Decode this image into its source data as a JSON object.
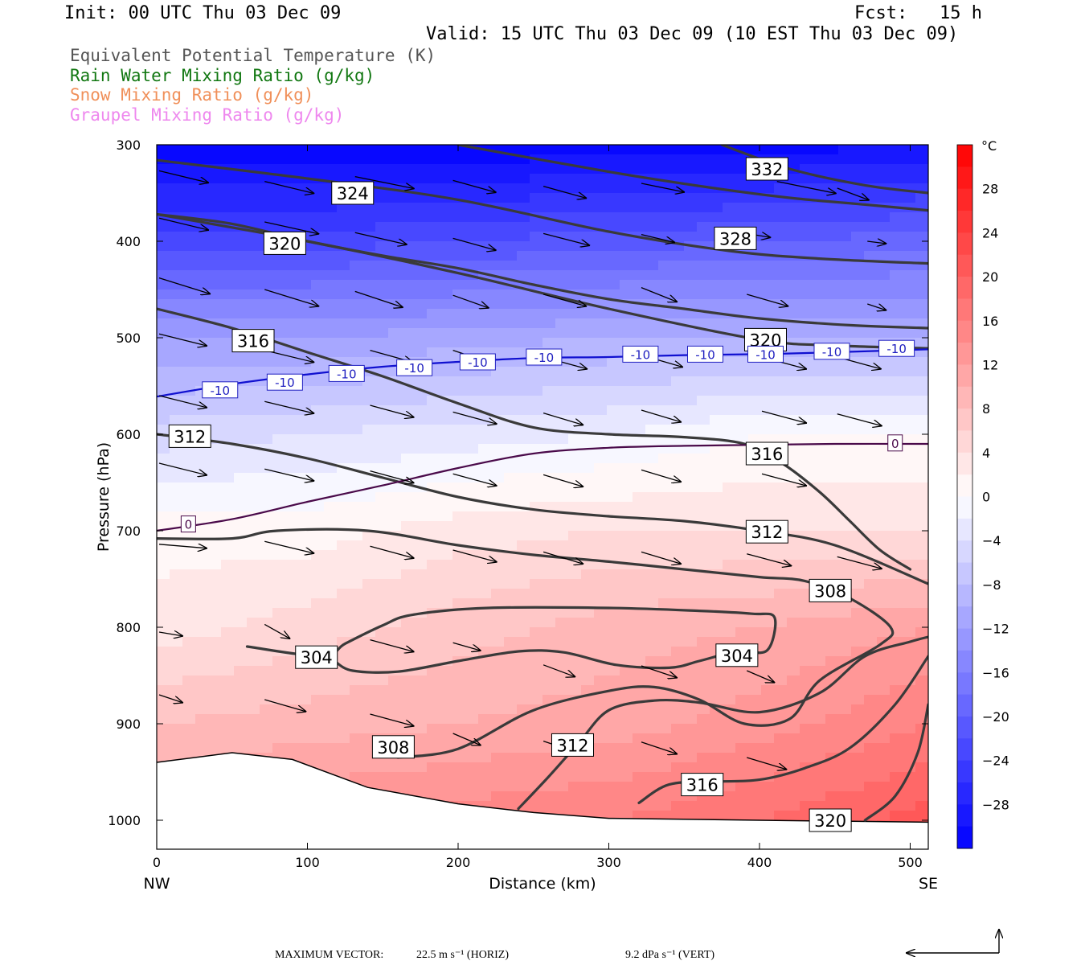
{
  "header": {
    "init": "Init: 00 UTC Thu 03 Dec 09",
    "fcst": "Fcst:   15 h",
    "valid": "Valid: 15 UTC Thu 03 Dec 09 (10 EST Thu 03 Dec 09)"
  },
  "legend": [
    {
      "label": "Equivalent Potential Temperature (K)",
      "color": "#555555"
    },
    {
      "label": "Rain Water Mixing Ratio (g/kg)",
      "color": "#117711"
    },
    {
      "label": "Snow Mixing Ratio (g/kg)",
      "color": "#f0905a"
    },
    {
      "label": "Graupel Mixing Ratio (g/kg)",
      "color": "#ee88ee"
    }
  ],
  "chart_data": {
    "type": "cross-section",
    "xlabel": "Distance (km)",
    "ylabel": "Pressure (hPa)",
    "xlim": [
      0,
      512
    ],
    "ylim": [
      1030,
      300
    ],
    "x_ticks": [
      0,
      100,
      200,
      300,
      400,
      500
    ],
    "y_ticks": [
      300,
      400,
      500,
      600,
      700,
      800,
      900,
      1000
    ],
    "x_end_labels": {
      "left": "NW",
      "right": "SE"
    },
    "colorbar": {
      "unit": "°C",
      "range": [
        -32,
        32
      ],
      "ticks": [
        28,
        24,
        20,
        16,
        12,
        8,
        4,
        0,
        -4,
        -8,
        -12,
        -16,
        -20,
        -24,
        -28
      ]
    },
    "temperature_field": {
      "x": [
        0,
        100,
        200,
        300,
        400,
        512
      ],
      "p": [
        300,
        400,
        500,
        600,
        700,
        800,
        900,
        1000
      ],
      "t": [
        [
          -32,
          -32,
          -32,
          -31,
          -31,
          -30
        ],
        [
          -23,
          -23,
          -22,
          -21,
          -20,
          -19
        ],
        [
          -12,
          -12,
          -11,
          -10,
          -10,
          -10
        ],
        [
          -5,
          -4,
          -3,
          -2,
          0,
          0
        ],
        [
          1,
          1,
          3,
          4,
          4,
          4
        ],
        [
          3,
          5,
          7,
          9,
          10,
          12
        ],
        [
          8,
          9,
          10,
          11,
          13,
          16
        ],
        [
          12,
          14,
          15,
          16,
          18,
          21
        ]
      ]
    },
    "terrain": [
      [
        0,
        940
      ],
      [
        50,
        930
      ],
      [
        90,
        937
      ],
      [
        140,
        966
      ],
      [
        200,
        983
      ],
      [
        250,
        992
      ],
      [
        300,
        998
      ],
      [
        400,
        1000
      ],
      [
        512,
        1002
      ]
    ],
    "theta_e_contours": [
      {
        "value": "332",
        "points": [
          [
            200,
            300
          ],
          [
            300,
            328
          ],
          [
            370,
            345
          ],
          [
            420,
            355
          ],
          [
            470,
            362
          ],
          [
            512,
            368
          ]
        ]
      },
      {
        "value": "332",
        "points": [
          [
            375,
            300
          ],
          [
            420,
            325
          ],
          [
            470,
            342
          ],
          [
            512,
            350
          ]
        ]
      },
      {
        "value": "328",
        "points": [
          [
            0,
            316
          ],
          [
            100,
            335
          ],
          [
            200,
            357
          ],
          [
            300,
            390
          ],
          [
            380,
            410
          ],
          [
            440,
            418
          ],
          [
            512,
            423
          ]
        ]
      },
      {
        "value": "320",
        "points": [
          [
            0,
            372
          ],
          [
            100,
            400
          ],
          [
            200,
            433
          ],
          [
            300,
            470
          ],
          [
            400,
            502
          ],
          [
            450,
            508
          ],
          [
            512,
            511
          ]
        ]
      },
      {
        "value": "324",
        "points": [
          [
            0,
            372
          ],
          [
            50,
            382
          ],
          [
            100,
            400
          ],
          [
            150,
            415
          ],
          [
            200,
            428
          ],
          [
            250,
            445
          ],
          [
            300,
            460
          ],
          [
            350,
            470
          ],
          [
            400,
            480
          ],
          [
            460,
            487
          ],
          [
            512,
            490
          ]
        ]
      },
      {
        "value": "316",
        "points": [
          [
            0,
            470
          ],
          [
            50,
            490
          ],
          [
            100,
            515
          ],
          [
            150,
            540
          ],
          [
            200,
            568
          ],
          [
            250,
            593
          ],
          [
            300,
            600
          ],
          [
            350,
            603
          ],
          [
            390,
            610
          ],
          [
            415,
            630
          ],
          [
            440,
            660
          ],
          [
            460,
            690
          ],
          [
            480,
            720
          ],
          [
            500,
            740
          ]
        ]
      },
      {
        "value": "312",
        "points": [
          [
            0,
            600
          ],
          [
            50,
            610
          ],
          [
            100,
            625
          ],
          [
            150,
            645
          ],
          [
            200,
            665
          ],
          [
            250,
            678
          ],
          [
            300,
            685
          ],
          [
            350,
            690
          ],
          [
            400,
            700
          ],
          [
            450,
            715
          ],
          [
            512,
            755
          ]
        ]
      },
      {
        "value": "308",
        "points": [
          [
            0,
            708
          ],
          [
            50,
            708
          ],
          [
            80,
            700
          ],
          [
            140,
            700
          ],
          [
            200,
            715
          ],
          [
            250,
            725
          ],
          [
            300,
            732
          ],
          [
            350,
            740
          ],
          [
            400,
            748
          ],
          [
            430,
            752
          ],
          [
            460,
            770
          ],
          [
            487,
            800
          ],
          [
            480,
            818
          ],
          [
            440,
            855
          ],
          [
            420,
            895
          ],
          [
            390,
            900
          ],
          [
            360,
            875
          ],
          [
            330,
            862
          ],
          [
            300,
            866
          ],
          [
            250,
            886
          ],
          [
            200,
            926
          ],
          [
            160,
            935
          ]
        ]
      },
      {
        "value": "304",
        "points": [
          [
            60,
            820
          ],
          [
            110,
            830
          ],
          [
            125,
            817
          ],
          [
            150,
            798
          ],
          [
            170,
            787
          ],
          [
            220,
            780
          ],
          [
            300,
            780
          ],
          [
            360,
            783
          ],
          [
            395,
            786
          ],
          [
            410,
            790
          ],
          [
            405,
            824
          ],
          [
            385,
            825
          ],
          [
            360,
            835
          ],
          [
            340,
            842
          ],
          [
            305,
            839
          ],
          [
            270,
            826
          ],
          [
            240,
            825
          ],
          [
            200,
            835
          ],
          [
            160,
            846
          ],
          [
            130,
            845
          ],
          [
            118,
            835
          ]
        ]
      },
      {
        "value": "312",
        "points": [
          [
            240,
            988
          ],
          [
            260,
            955
          ],
          [
            280,
            920
          ],
          [
            300,
            886
          ],
          [
            330,
            876
          ],
          [
            360,
            878
          ],
          [
            400,
            888
          ],
          [
            440,
            868
          ],
          [
            470,
            830
          ],
          [
            500,
            815
          ],
          [
            512,
            810
          ]
        ]
      },
      {
        "value": "316",
        "points": [
          [
            320,
            982
          ],
          [
            340,
            963
          ],
          [
            370,
            960
          ],
          [
            400,
            958
          ],
          [
            430,
            946
          ],
          [
            460,
            925
          ],
          [
            490,
            880
          ],
          [
            512,
            830
          ]
        ]
      },
      {
        "value": "320",
        "points": [
          [
            470,
            1000
          ],
          [
            490,
            975
          ],
          [
            505,
            930
          ],
          [
            512,
            880
          ]
        ]
      }
    ],
    "theta_e_labels": [
      {
        "value": "332",
        "x": 405,
        "p": 325
      },
      {
        "value": "324",
        "x": 130,
        "p": 350
      },
      {
        "value": "328",
        "x": 384,
        "p": 397
      },
      {
        "value": "320",
        "x": 85,
        "p": 402
      },
      {
        "value": "320",
        "x": 404,
        "p": 502
      },
      {
        "value": "316",
        "x": 64,
        "p": 503
      },
      {
        "value": "312",
        "x": 22,
        "p": 602
      },
      {
        "value": "316",
        "x": 405,
        "p": 620
      },
      {
        "value": "312",
        "x": 405,
        "p": 701
      },
      {
        "value": "308",
        "x": 447,
        "p": 762
      },
      {
        "value": "304",
        "x": 106,
        "p": 831
      },
      {
        "value": "304",
        "x": 385,
        "p": 829
      },
      {
        "value": "308",
        "x": 157,
        "p": 924
      },
      {
        "value": "312",
        "x": 276,
        "p": 922
      },
      {
        "value": "316",
        "x": 362,
        "p": 963
      },
      {
        "value": "320",
        "x": 447,
        "p": 1000
      }
    ],
    "isotherms": [
      {
        "value": "-10",
        "color": "#1010d0",
        "points": [
          [
            0,
            561
          ],
          [
            50,
            548
          ],
          [
            100,
            538
          ],
          [
            150,
            530
          ],
          [
            200,
            525
          ],
          [
            250,
            521
          ],
          [
            300,
            520
          ],
          [
            350,
            518
          ],
          [
            400,
            517
          ],
          [
            450,
            515
          ],
          [
            512,
            512
          ]
        ]
      },
      {
        "value": "0",
        "color": "#4a0a4a",
        "points": [
          [
            0,
            700
          ],
          [
            50,
            688
          ],
          [
            100,
            670
          ],
          [
            150,
            653
          ],
          [
            200,
            635
          ],
          [
            250,
            620
          ],
          [
            300,
            614
          ],
          [
            350,
            612
          ],
          [
            400,
            611
          ],
          [
            450,
            610
          ],
          [
            512,
            610
          ]
        ]
      }
    ],
    "isotherm_labels": [
      {
        "value": "-10",
        "x": 42,
        "p": 554
      },
      {
        "value": "-10",
        "x": 85,
        "p": 546
      },
      {
        "value": "-10",
        "x": 126,
        "p": 537
      },
      {
        "value": "-10",
        "x": 171,
        "p": 531
      },
      {
        "value": "-10",
        "x": 213,
        "p": 525
      },
      {
        "value": "-10",
        "x": 257,
        "p": 520
      },
      {
        "value": "-10",
        "x": 321,
        "p": 517
      },
      {
        "value": "-10",
        "x": 364,
        "p": 517
      },
      {
        "value": "-10",
        "x": 404,
        "p": 517
      },
      {
        "value": "-10",
        "x": 448,
        "p": 514
      },
      {
        "value": "-10",
        "x": 491,
        "p": 511
      },
      {
        "value": "0",
        "x": 21,
        "p": 693
      },
      {
        "value": "0",
        "x": 490,
        "p": 609
      }
    ],
    "vectors": [
      [
        0,
        327,
        62,
        15
      ],
      [
        70,
        338,
        62,
        15
      ],
      [
        130,
        333,
        74,
        15
      ],
      [
        195,
        337,
        54,
        15
      ],
      [
        255,
        343,
        54,
        15
      ],
      [
        320,
        340,
        54,
        11
      ],
      [
        410,
        338,
        74,
        15
      ],
      [
        450,
        345,
        40,
        15
      ],
      [
        0,
        376,
        62,
        15
      ],
      [
        70,
        380,
        68,
        15
      ],
      [
        130,
        391,
        65,
        15
      ],
      [
        195,
        397,
        54,
        15
      ],
      [
        255,
        392,
        58,
        15
      ],
      [
        320,
        393,
        42,
        10
      ],
      [
        390,
        392,
        30,
        5
      ],
      [
        470,
        400,
        24,
        3
      ],
      [
        0,
        438,
        64,
        20
      ],
      [
        70,
        450,
        68,
        21
      ],
      [
        130,
        452,
        60,
        20
      ],
      [
        195,
        456,
        45,
        16
      ],
      [
        255,
        455,
        54,
        15
      ],
      [
        320,
        448,
        45,
        18
      ],
      [
        390,
        455,
        52,
        15
      ],
      [
        470,
        465,
        24,
        8
      ],
      [
        0,
        496,
        60,
        15
      ],
      [
        70,
        513,
        62,
        15
      ],
      [
        140,
        513,
        54,
        15
      ],
      [
        195,
        513,
        45,
        15
      ],
      [
        255,
        520,
        55,
        15
      ],
      [
        320,
        518,
        52,
        15
      ],
      [
        400,
        520,
        56,
        15
      ],
      [
        450,
        520,
        55,
        15
      ],
      [
        0,
        560,
        60,
        15
      ],
      [
        70,
        566,
        62,
        15
      ],
      [
        140,
        570,
        55,
        15
      ],
      [
        195,
        577,
        55,
        15
      ],
      [
        255,
        578,
        50,
        15
      ],
      [
        320,
        575,
        50,
        15
      ],
      [
        400,
        576,
        56,
        15
      ],
      [
        450,
        579,
        56,
        15
      ],
      [
        0,
        630,
        60,
        15
      ],
      [
        70,
        636,
        62,
        15
      ],
      [
        140,
        638,
        55,
        15
      ],
      [
        195,
        641,
        55,
        15
      ],
      [
        255,
        642,
        50,
        15
      ],
      [
        320,
        637,
        50,
        15
      ],
      [
        400,
        641,
        56,
        15
      ],
      [
        0,
        714,
        60,
        5
      ],
      [
        70,
        711,
        62,
        15
      ],
      [
        140,
        716,
        55,
        15
      ],
      [
        195,
        720,
        55,
        15
      ],
      [
        255,
        722,
        50,
        15
      ],
      [
        320,
        722,
        50,
        15
      ],
      [
        390,
        724,
        56,
        15
      ],
      [
        450,
        727,
        56,
        15
      ],
      [
        0,
        805,
        30,
        5
      ],
      [
        70,
        797,
        32,
        18
      ],
      [
        140,
        813,
        55,
        15
      ],
      [
        195,
        816,
        35,
        10
      ],
      [
        255,
        839,
        40,
        15
      ],
      [
        320,
        840,
        45,
        15
      ],
      [
        390,
        845,
        35,
        15
      ],
      [
        0,
        870,
        30,
        10
      ],
      [
        70,
        875,
        52,
        15
      ],
      [
        140,
        890,
        55,
        15
      ],
      [
        195,
        910,
        35,
        15
      ],
      [
        255,
        918,
        45,
        15
      ],
      [
        320,
        919,
        45,
        15
      ],
      [
        390,
        935,
        50,
        15
      ]
    ],
    "footer": {
      "label": "MAXIMUM VECTOR:",
      "horiz": "22.5 m s⁻¹ (HORIZ)",
      "vert": "9.2 dPa s⁻¹ (VERT)"
    }
  }
}
